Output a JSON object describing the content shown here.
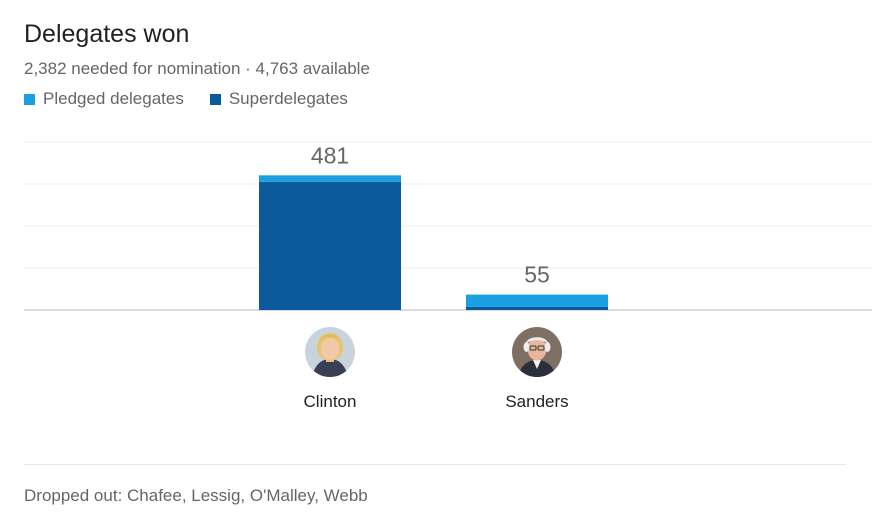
{
  "title": "Delegates won",
  "subtitle": "2,382 needed for nomination · 4,763 available",
  "legend": [
    {
      "label": "Pledged delegates",
      "color": "#1a9fe0"
    },
    {
      "label": "Superdelegates",
      "color": "#0a5a9c"
    }
  ],
  "chart_data": {
    "type": "bar",
    "stacked": true,
    "categories": [
      "Clinton",
      "Sanders"
    ],
    "series": [
      {
        "name": "Superdelegates",
        "color": "#0a5a9c",
        "values": [
          458,
          11
        ]
      },
      {
        "name": "Pledged delegates",
        "color": "#1a9fe0",
        "values": [
          23,
          44
        ]
      }
    ],
    "totals": [
      "481",
      "55"
    ],
    "ylim": [
      0,
      600
    ],
    "grid": true,
    "legend_position": "top-left"
  },
  "candidates": [
    {
      "name": "Clinton",
      "icon": "clinton-avatar-icon"
    },
    {
      "name": "Sanders",
      "icon": "sanders-avatar-icon"
    }
  ],
  "footer": "Dropped out: Chafee, Lessig, O'Malley, Webb"
}
